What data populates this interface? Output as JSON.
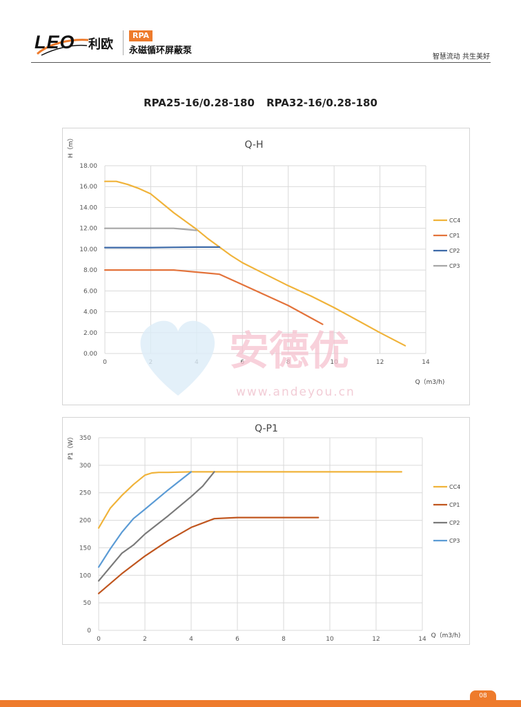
{
  "header": {
    "logo_text": "LEO",
    "logo_cn": "利欧",
    "series_badge": "RPA",
    "series_name": "永磁循环屏蔽泵",
    "slogan": "智慧流动 共生美好"
  },
  "page": {
    "title": "RPA25-16/0.28-180    RPA32-16/0.28-180",
    "number": "08"
  },
  "watermark": {
    "text": "安德优",
    "url": "www.andeyou.cn"
  },
  "colors": {
    "orange": "#ee7b2c",
    "cc4": "#f0b33a",
    "cp1_qh": "#e3733b",
    "cp2_qh": "#3d6aa8",
    "cp3_qh": "#a6a6a6",
    "cp1_qp": "#c0561f",
    "cp2_qp": "#7a7a7a",
    "cp3_qp": "#5b9bd5"
  },
  "chart_data": [
    {
      "type": "line",
      "title": "Q-H",
      "xlabel": "Q（m3/h)",
      "ylabel": "H（m）",
      "xlim": [
        0,
        14
      ],
      "ylim": [
        0,
        18
      ],
      "x_ticks": [
        "0",
        "2",
        "4",
        "6",
        "8",
        "10",
        "12",
        "14"
      ],
      "y_ticks": [
        "0.00",
        "2.00",
        "4.00",
        "6.00",
        "8.00",
        "10.00",
        "12.00",
        "14.00",
        "16.00",
        "18.00"
      ],
      "grid": true,
      "legend_position": "right",
      "series": [
        {
          "name": "CC4",
          "color": "#f0b33a",
          "x": [
            0,
            0.5,
            1,
            1.5,
            2,
            2.5,
            3,
            3.5,
            4,
            4.5,
            5,
            5.5,
            6,
            7,
            8,
            9,
            10,
            11,
            12,
            13.1
          ],
          "y": [
            16.5,
            16.5,
            16.2,
            15.8,
            15.3,
            14.4,
            13.5,
            12.7,
            11.9,
            11.0,
            10.2,
            9.4,
            8.7,
            7.6,
            6.5,
            5.5,
            4.4,
            3.2,
            2.0,
            0.75
          ]
        },
        {
          "name": "CP1",
          "color": "#e3733b",
          "x": [
            0,
            1,
            2,
            3,
            4,
            4.5,
            5,
            6,
            7,
            8,
            9,
            9.5
          ],
          "y": [
            8.0,
            8.0,
            8.0,
            8.0,
            7.8,
            7.7,
            7.6,
            6.6,
            5.6,
            4.6,
            3.4,
            2.8
          ]
        },
        {
          "name": "CP2",
          "color": "#3d6aa8",
          "x": [
            0,
            1,
            2,
            3,
            4,
            5
          ],
          "y": [
            10.15,
            10.15,
            10.15,
            10.18,
            10.2,
            10.2
          ]
        },
        {
          "name": "CP3",
          "color": "#a6a6a6",
          "x": [
            0,
            1,
            2,
            3,
            3.5,
            4
          ],
          "y": [
            12.0,
            12.0,
            12.0,
            12.0,
            11.9,
            11.8
          ]
        }
      ]
    },
    {
      "type": "line",
      "title": "Q-P1",
      "xlabel": "Q（m3/h)",
      "ylabel": "P1（W）",
      "xlim": [
        0,
        14
      ],
      "ylim": [
        0,
        350
      ],
      "x_ticks": [
        "0",
        "2",
        "4",
        "6",
        "8",
        "10",
        "12",
        "14"
      ],
      "y_ticks": [
        "0",
        "50",
        "100",
        "150",
        "200",
        "250",
        "300",
        "350"
      ],
      "grid": true,
      "legend_position": "right",
      "series": [
        {
          "name": "CC4",
          "color": "#f0b33a",
          "x": [
            0,
            0.5,
            1,
            1.5,
            2,
            2.3,
            2.6,
            3,
            4,
            6,
            8,
            10,
            12,
            13.1
          ],
          "y": [
            186,
            222,
            245,
            265,
            282,
            286,
            287,
            287,
            288,
            288,
            288,
            288,
            288,
            288
          ]
        },
        {
          "name": "CP1",
          "color": "#c0561f",
          "x": [
            0,
            1,
            2,
            3,
            4,
            5,
            5.5,
            6,
            7,
            8,
            9,
            9.5
          ],
          "y": [
            67,
            103,
            135,
            163,
            187,
            203,
            204,
            205,
            205,
            205,
            205,
            205
          ]
        },
        {
          "name": "CP2",
          "color": "#7a7a7a",
          "x": [
            0,
            0.5,
            1,
            1.5,
            2,
            3,
            4,
            4.5,
            5
          ],
          "y": [
            90,
            115,
            140,
            155,
            175,
            208,
            243,
            262,
            288
          ]
        },
        {
          "name": "CP3",
          "color": "#5b9bd5",
          "x": [
            0,
            0.5,
            1,
            1.5,
            2,
            3,
            4
          ],
          "y": [
            115,
            148,
            178,
            203,
            220,
            255,
            288
          ]
        }
      ]
    }
  ]
}
